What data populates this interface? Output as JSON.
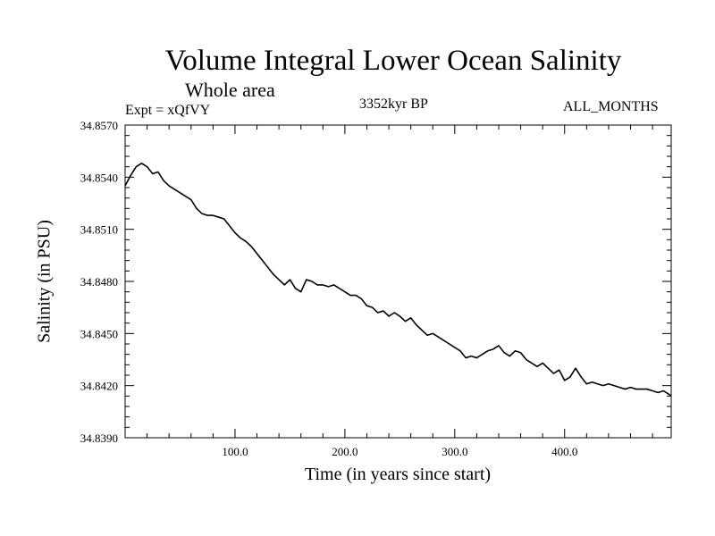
{
  "chart_data": {
    "type": "line",
    "title": "Volume Integral Lower Ocean Salinity",
    "subtitle": "Whole area",
    "experiment_label": "Expt = xQfVY",
    "period_label": "3352kyr BP",
    "season_label": "ALL_MONTHS",
    "xlabel": "Time (in years since start)",
    "ylabel": "Salinity (in PSU)",
    "xlim": [
      0,
      497
    ],
    "ylim": [
      34.839,
      34.857
    ],
    "xticks": [
      100,
      200,
      300,
      400
    ],
    "xtick_labels": [
      "100.0",
      "200.0",
      "300.0",
      "400.0"
    ],
    "yticks": [
      34.839,
      34.842,
      34.845,
      34.848,
      34.851,
      34.854,
      34.857
    ],
    "ytick_labels": [
      "34.8390",
      "34.8420",
      "34.8450",
      "34.8480",
      "34.8510",
      "34.8540",
      "34.8570"
    ],
    "grid": false,
    "series": [
      {
        "name": "Salinity",
        "color": "#000000",
        "x": [
          0,
          5,
          10,
          15,
          20,
          25,
          30,
          35,
          40,
          45,
          50,
          55,
          60,
          65,
          70,
          75,
          80,
          85,
          90,
          95,
          100,
          105,
          110,
          115,
          120,
          125,
          130,
          135,
          140,
          145,
          150,
          155,
          160,
          165,
          170,
          175,
          180,
          185,
          190,
          195,
          200,
          205,
          210,
          215,
          220,
          225,
          230,
          235,
          240,
          245,
          250,
          255,
          260,
          265,
          270,
          275,
          280,
          285,
          290,
          295,
          300,
          305,
          310,
          315,
          320,
          325,
          330,
          335,
          340,
          345,
          350,
          355,
          360,
          365,
          370,
          375,
          380,
          385,
          390,
          395,
          400,
          405,
          410,
          415,
          420,
          425,
          430,
          435,
          440,
          445,
          450,
          455,
          460,
          465,
          470,
          475,
          480,
          485,
          490,
          495,
          497
        ],
        "y": [
          34.8535,
          34.8541,
          34.8546,
          34.8548,
          34.8546,
          34.8542,
          34.8543,
          34.8538,
          34.8535,
          34.8533,
          34.8531,
          34.8529,
          34.8527,
          34.8522,
          34.8519,
          34.8518,
          34.8518,
          34.8517,
          34.8516,
          34.8512,
          34.8508,
          34.8505,
          34.8503,
          34.85,
          34.8496,
          34.8492,
          34.8488,
          34.8484,
          34.8481,
          34.8478,
          34.8481,
          34.8476,
          34.8474,
          34.8481,
          34.848,
          34.8478,
          34.8478,
          34.8477,
          34.8478,
          34.8476,
          34.8474,
          34.8472,
          34.8472,
          34.847,
          34.8466,
          34.8465,
          34.8462,
          34.8463,
          34.846,
          34.8462,
          34.846,
          34.8457,
          34.8459,
          34.8455,
          34.8452,
          34.8449,
          34.845,
          34.8448,
          34.8446,
          34.8444,
          34.8442,
          34.844,
          34.8436,
          34.8437,
          34.8436,
          34.8438,
          34.844,
          34.8441,
          34.8443,
          34.8439,
          34.8437,
          34.844,
          34.8439,
          34.8435,
          34.8433,
          34.8431,
          34.8433,
          34.843,
          34.8427,
          34.8429,
          34.8423,
          34.8425,
          34.843,
          34.8425,
          34.8421,
          34.8422,
          34.8421,
          34.842,
          34.8421,
          34.842,
          34.8419,
          34.8418,
          34.8419,
          34.8418,
          34.8418,
          34.8418,
          34.8417,
          34.8416,
          34.8417,
          34.8415,
          34.8414
        ]
      }
    ]
  }
}
